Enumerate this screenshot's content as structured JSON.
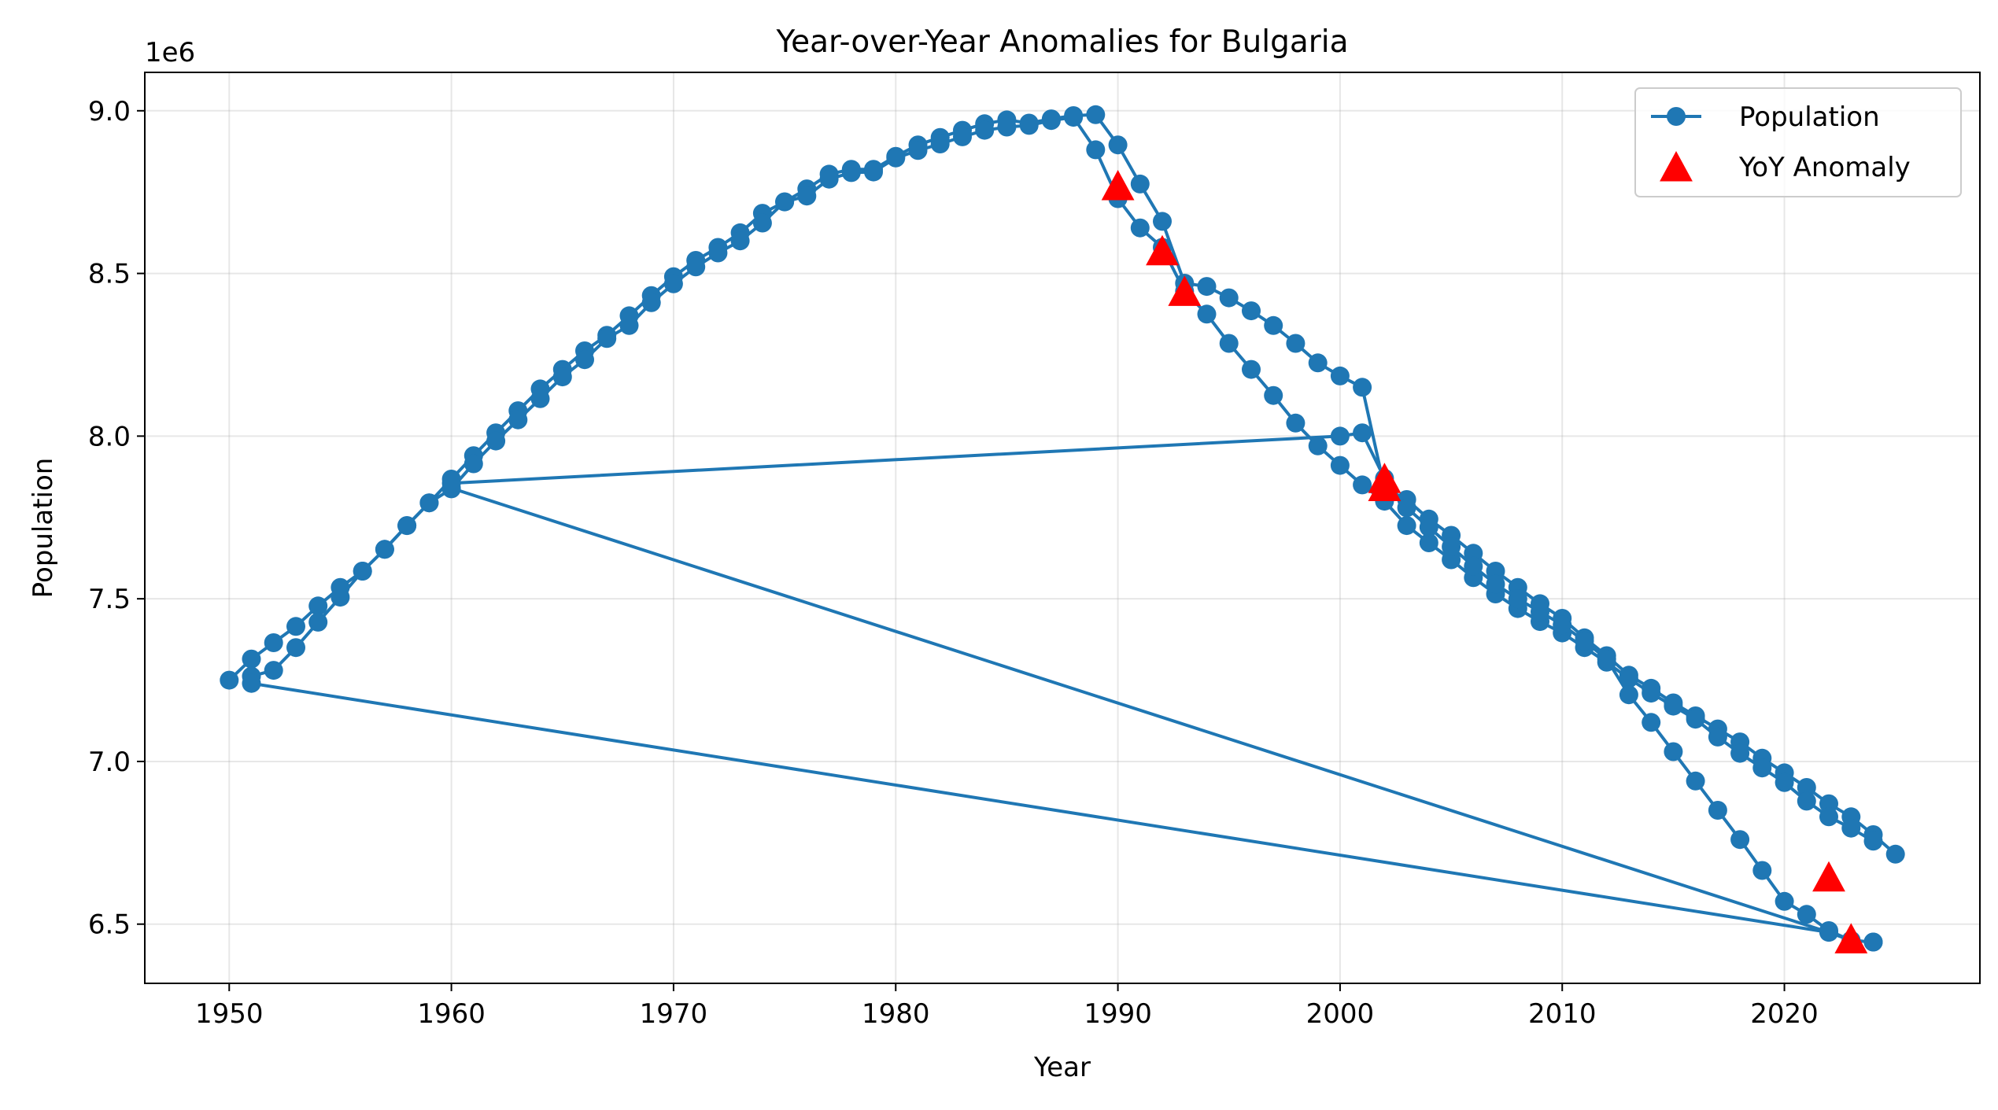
{
  "chart_data": {
    "type": "line",
    "title": "Year-over-Year Anomalies for Bulgaria",
    "xlabel": "Year",
    "ylabel": "Population",
    "y_offset_label": "1e6",
    "xlim": [
      1946.2,
      1928.8
    ],
    "ylim": [
      6.318,
      9.118
    ],
    "x_ticks": [
      1950,
      1960,
      1970,
      1980,
      1990,
      2000,
      2010,
      2020
    ],
    "y_ticks": [
      6.5,
      7.0,
      7.5,
      8.0,
      8.5,
      9.0
    ],
    "y_tick_labels": [
      "6.5",
      "7.0",
      "7.5",
      "8.0",
      "8.5",
      "9.0"
    ],
    "grid": true,
    "legend_position": "top-right",
    "colors": {
      "line": "#1f77b4",
      "anomaly": "#ff0000",
      "grid": "#b0b0b0"
    },
    "series": [
      {
        "name": "Population",
        "style": "line-with-circle-markers",
        "segments": [
          {
            "x": [
              1950,
              1951,
              1952,
              1953,
              1954,
              1955,
              1956,
              1957,
              1958,
              1959,
              1960,
              1961,
              1962,
              1963,
              1964,
              1965,
              1966,
              1967,
              1968,
              1969,
              1970,
              1971,
              1972,
              1973,
              1974,
              1975,
              1976,
              1977,
              1978,
              1979,
              1980,
              1981,
              1982,
              1983,
              1984,
              1985,
              1986,
              1987,
              1988,
              1989,
              1990,
              1991,
              1992,
              1993,
              1994,
              1995,
              1996,
              1997,
              1998,
              1999,
              2000,
              2001,
              2002,
              2003,
              2004,
              2005,
              2006,
              2007,
              2008,
              2009,
              2010,
              2011,
              2012,
              2013,
              2014,
              2015,
              2016,
              2017,
              2018,
              2019,
              2020,
              2021,
              2022,
              2023,
              2024,
              2025
            ],
            "y": [
              7.25,
              7.315,
              7.365,
              7.415,
              7.478,
              7.535,
              7.585,
              7.652,
              7.725,
              7.795,
              7.868,
              7.94,
              8.01,
              8.078,
              8.145,
              8.205,
              8.262,
              8.31,
              8.37,
              8.432,
              8.49,
              8.54,
              8.58,
              8.625,
              8.685,
              8.72,
              8.76,
              8.805,
              8.82,
              8.82,
              8.86,
              8.895,
              8.918,
              8.94,
              8.96,
              8.972,
              8.962,
              8.975,
              8.985,
              8.988,
              8.895,
              8.775,
              8.66,
              8.47,
              8.46,
              8.425,
              8.385,
              8.34,
              8.285,
              8.225,
              8.185,
              8.15,
              7.84,
              7.805,
              7.745,
              7.695,
              7.64,
              7.585,
              7.535,
              7.485,
              7.44,
              7.38,
              7.325,
              7.265,
              7.225,
              7.18,
              7.14,
              7.1,
              7.06,
              7.01,
              6.965,
              6.92,
              6.87,
              6.83,
              6.775,
              6.715
            ]
          },
          {
            "x": [
              1951,
              1952,
              1953,
              1954,
              1955,
              1956,
              1957,
              1958,
              1959,
              1960,
              1961,
              1962,
              1963,
              1964,
              1965,
              1966,
              1967,
              1968,
              1969,
              1970,
              1971,
              1972,
              1973,
              1974,
              1975,
              1976,
              1977,
              1978,
              1979,
              1980,
              1981,
              1982,
              1983,
              1984,
              1985,
              1986,
              1987,
              1988,
              1989,
              1990,
              1991,
              1992,
              1993,
              1994,
              1995,
              1996,
              1997,
              1998,
              1999,
              2000,
              2001,
              2002,
              2003,
              2004,
              2005,
              2006,
              2007,
              2008,
              2009,
              2010,
              2011,
              2012,
              2013,
              2014,
              2015,
              2016,
              2017,
              2018,
              2019,
              2020,
              2021,
              2022,
              2023,
              2024
            ],
            "y": [
              7.262,
              7.28,
              7.35,
              7.428,
              7.505,
              7.585,
              7.652,
              7.725,
              7.795,
              7.838,
              7.915,
              7.985,
              8.05,
              8.115,
              8.182,
              8.235,
              8.3,
              8.34,
              8.41,
              8.468,
              8.52,
              8.563,
              8.6,
              8.655,
              8.72,
              8.738,
              8.79,
              8.81,
              8.812,
              8.855,
              8.878,
              8.898,
              8.92,
              8.94,
              8.95,
              8.955,
              8.97,
              8.98,
              8.88,
              8.73,
              8.64,
              8.58,
              8.445,
              8.375,
              8.285,
              8.205,
              8.125,
              8.04,
              7.97,
              7.91,
              7.85,
              7.8,
              7.725,
              7.672,
              7.62,
              7.565,
              7.515,
              7.47,
              7.43,
              7.395,
              7.35,
              7.305,
              7.255,
              7.21,
              7.17,
              7.13,
              7.075,
              7.025,
              6.98,
              6.935,
              6.878,
              6.83,
              6.795,
              6.755
            ]
          },
          {
            "x": [
              1951,
              2022,
              2023,
              2024
            ],
            "y": [
              7.24,
              6.475,
              6.45,
              6.445
            ]
          },
          {
            "x": [
              1960,
              2022,
              2023,
              2024
            ],
            "y": [
              7.84,
              6.475,
              6.45,
              6.445
            ]
          },
          {
            "x": [
              1960,
              2000,
              2001,
              2002,
              2003,
              2004,
              2005,
              2006,
              2007,
              2008,
              2009,
              2010,
              2011,
              2012,
              2013,
              2014,
              2015,
              2016,
              2017,
              2018,
              2019,
              2020,
              2021,
              2022,
              2023
            ],
            "y": [
              7.855,
              8.0,
              8.01,
              7.87,
              7.78,
              7.72,
              7.66,
              7.6,
              7.545,
              7.5,
              7.46,
              7.42,
              7.37,
              7.315,
              7.205,
              7.12,
              7.03,
              6.94,
              6.85,
              6.76,
              6.665,
              6.57,
              6.53,
              6.48,
              6.45
            ]
          }
        ]
      },
      {
        "name": "YoY Anomaly",
        "style": "triangle-markers",
        "x": [
          1990,
          1992,
          1993,
          2002,
          2002,
          2022,
          2023
        ],
        "y": [
          8.765,
          8.565,
          8.44,
          7.865,
          7.84,
          6.64,
          6.45
        ]
      }
    ]
  }
}
